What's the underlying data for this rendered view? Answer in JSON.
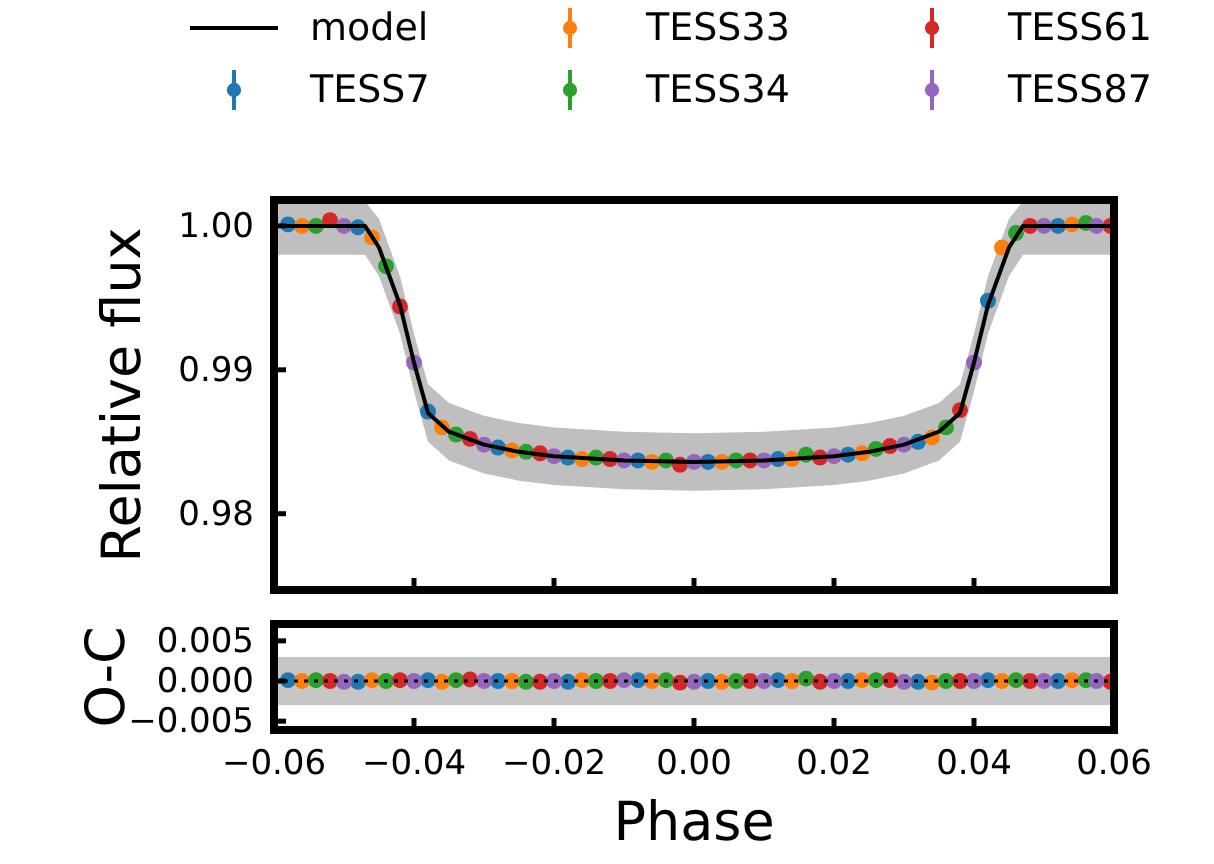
{
  "chart_data": [
    {
      "type": "scatter",
      "ylabel": "Relative flux",
      "xlim": [
        -0.06,
        0.06
      ],
      "ylim": [
        0.9747,
        1.0018
      ],
      "xticks": [
        {
          "value": -0.06,
          "label": null
        },
        {
          "value": -0.04,
          "label": null
        },
        {
          "value": -0.02,
          "label": null
        },
        {
          "value": 0,
          "label": null
        },
        {
          "value": 0.02,
          "label": null
        },
        {
          "value": 0.04,
          "label": null
        },
        {
          "value": 0.06,
          "label": null
        }
      ],
      "yticks": [
        {
          "value": 0.98,
          "label": "0.98"
        },
        {
          "value": 0.99,
          "label": "0.99"
        },
        {
          "value": 1.0,
          "label": "1.00"
        }
      ],
      "tick_labels": "y",
      "grid": false,
      "legend": "top",
      "marker": "circle",
      "series": [
        {
          "name": "model",
          "type": "line",
          "color": "#000000",
          "line_style": "solid",
          "marker": "none",
          "x": [
            -0.06,
            -0.047,
            -0.045,
            -0.042,
            -0.04,
            -0.038,
            -0.035,
            -0.03,
            -0.025,
            -0.02,
            -0.01,
            0,
            0.01,
            0.02,
            0.025,
            0.03,
            0.035,
            0.038,
            0.04,
            0.042,
            0.045,
            0.047,
            0.06
          ],
          "values": [
            1.0,
            1.0,
            0.9985,
            0.9945,
            0.9905,
            0.987,
            0.9857,
            0.9848,
            0.9843,
            0.984,
            0.9837,
            0.9836,
            0.9837,
            0.984,
            0.9843,
            0.9848,
            0.9857,
            0.987,
            0.9905,
            0.9945,
            0.9985,
            1.0,
            1.0
          ],
          "lower": [
            0.998,
            0.998,
            0.9965,
            0.9925,
            0.9885,
            0.985,
            0.9837,
            0.9828,
            0.9823,
            0.982,
            0.9817,
            0.9816,
            0.9817,
            0.982,
            0.9823,
            0.9828,
            0.9837,
            0.985,
            0.9885,
            0.9925,
            0.9965,
            0.998,
            0.998
          ],
          "upper": [
            1.0017,
            1.0017,
            1.0005,
            0.9965,
            0.9925,
            0.989,
            0.9877,
            0.9868,
            0.9863,
            0.986,
            0.9857,
            0.9856,
            0.9857,
            0.986,
            0.9863,
            0.9868,
            0.9877,
            0.989,
            0.9925,
            0.9965,
            1.0005,
            1.0017,
            1.0017
          ]
        },
        {
          "name": "TESS7",
          "color": "#1f77b4",
          "x": [
            -0.058,
            -0.048,
            -0.038,
            -0.028,
            -0.018,
            -0.008,
            0.002,
            0.012,
            0.022,
            0.032,
            0.042,
            0.052
          ],
          "values": [
            1.0001,
            0.9999,
            0.9871,
            0.9846,
            0.9839,
            0.9837,
            0.9836,
            0.9838,
            0.9841,
            0.985,
            0.9948,
            1.0
          ]
        },
        {
          "name": "TESS33",
          "color": "#ff7f0e",
          "x": [
            -0.056,
            -0.046,
            -0.036,
            -0.026,
            -0.016,
            -0.006,
            0.004,
            0.014,
            0.024,
            0.034,
            0.044,
            0.054
          ],
          "values": [
            1.0,
            0.9992,
            0.986,
            0.9844,
            0.9838,
            0.9836,
            0.9836,
            0.9838,
            0.9842,
            0.9853,
            0.9985,
            1.0001
          ]
        },
        {
          "name": "TESS34",
          "color": "#2ca02c",
          "x": [
            -0.054,
            -0.044,
            -0.034,
            -0.024,
            -0.014,
            -0.004,
            0.006,
            0.016,
            0.026,
            0.036,
            0.046,
            0.056
          ],
          "values": [
            1.0,
            0.9972,
            0.9855,
            0.9843,
            0.9839,
            0.9837,
            0.9837,
            0.9841,
            0.9845,
            0.986,
            0.9995,
            1.0002
          ]
        },
        {
          "name": "TESS61",
          "color": "#d62728",
          "x": [
            -0.052,
            -0.042,
            -0.032,
            -0.022,
            -0.012,
            -0.002,
            0.008,
            0.018,
            0.028,
            0.038,
            0.048,
            0.0595
          ],
          "values": [
            1.0004,
            0.9944,
            0.9852,
            0.9842,
            0.9838,
            0.9834,
            0.9837,
            0.9839,
            0.9847,
            0.9872,
            1.0,
            1.0
          ]
        },
        {
          "name": "TESS87",
          "color": "#9467bd",
          "x": [
            -0.05,
            -0.04,
            -0.03,
            -0.02,
            -0.01,
            0,
            0.01,
            0.02,
            0.03,
            0.04,
            0.05,
            0.0575
          ],
          "values": [
            1.0,
            0.9905,
            0.9848,
            0.984,
            0.9837,
            0.9836,
            0.9837,
            0.984,
            0.9848,
            0.9905,
            1.0,
            1.0
          ]
        }
      ]
    },
    {
      "type": "scatter",
      "xlabel": "Phase",
      "ylabel": "O-C",
      "xlim": [
        -0.06,
        0.06
      ],
      "ylim": [
        -0.0061,
        0.0071
      ],
      "xticks": [
        {
          "value": -0.06,
          "label": "−0.06"
        },
        {
          "value": -0.04,
          "label": "−0.04"
        },
        {
          "value": -0.02,
          "label": "−0.02"
        },
        {
          "value": 0,
          "label": "0.00"
        },
        {
          "value": 0.02,
          "label": "0.02"
        },
        {
          "value": 0.04,
          "label": "0.04"
        },
        {
          "value": 0.06,
          "label": "0.06"
        }
      ],
      "yticks": [
        {
          "value": -0.005,
          "label": "−0.005"
        },
        {
          "value": 0,
          "label": "0.000"
        },
        {
          "value": 0.005,
          "label": "0.005"
        }
      ],
      "grid": false,
      "legend": false,
      "marker": "circle",
      "bands": [
        {
          "axis": "y",
          "from": -0.003,
          "to": 0.003,
          "color": "#808080"
        }
      ],
      "ref_lines": [
        {
          "axis": "y",
          "value": 0,
          "color": "#000000",
          "line_style": "dotted"
        }
      ],
      "series": [
        {
          "color": "#1f77b4",
          "x": [
            -0.058,
            -0.048,
            -0.038,
            -0.028,
            -0.018,
            -0.008,
            0.002,
            0.012,
            0.022,
            0.032,
            0.042,
            0.052
          ],
          "values": [
            0.0001,
            -0.0001,
            0.0001,
            0,
            -0.0001,
            0.0001,
            0,
            0.0001,
            0,
            -0.0001,
            0.0001,
            0
          ]
        },
        {
          "color": "#ff7f0e",
          "x": [
            -0.056,
            -0.046,
            -0.036,
            -0.026,
            -0.016,
            -0.006,
            0.004,
            0.014,
            0.024,
            0.034,
            0.044,
            0.054
          ],
          "values": [
            0,
            0.0001,
            -0.0001,
            0,
            0.0001,
            0,
            -0.0001,
            0,
            0.0001,
            -0.0002,
            0,
            0.0001
          ]
        },
        {
          "color": "#2ca02c",
          "x": [
            -0.054,
            -0.044,
            -0.034,
            -0.024,
            -0.014,
            -0.004,
            0.006,
            0.016,
            0.026,
            0.036,
            0.046,
            0.056
          ],
          "values": [
            0.0001,
            0,
            0.0001,
            -0.0001,
            0,
            0.0001,
            0,
            0.0003,
            0.0001,
            0,
            0.0001,
            0.0001
          ]
        },
        {
          "color": "#d62728",
          "x": [
            -0.052,
            -0.042,
            -0.032,
            -0.022,
            -0.012,
            -0.002,
            0.008,
            0.018,
            0.028,
            0.038,
            0.048,
            0.0595
          ],
          "values": [
            0,
            0.0001,
            0.0002,
            -0.0001,
            0,
            -0.0002,
            0,
            -0.0001,
            0.0001,
            0,
            0,
            -0.0001
          ]
        },
        {
          "color": "#9467bd",
          "x": [
            -0.05,
            -0.04,
            -0.03,
            -0.02,
            -0.01,
            0,
            0.01,
            0.02,
            0.03,
            0.04,
            0.05,
            0.0575
          ],
          "values": [
            -0.0001,
            0,
            0,
            0,
            0.0001,
            -0.0001,
            0,
            0,
            -0.0001,
            0,
            0,
            0
          ]
        }
      ]
    }
  ]
}
